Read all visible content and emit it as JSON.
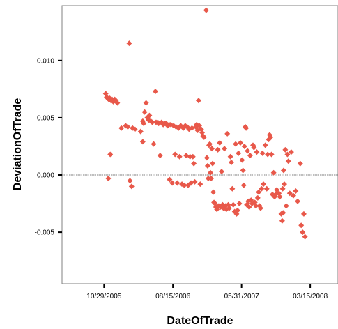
{
  "chart_data": {
    "type": "scatter",
    "title": "",
    "xlabel": "DateOfTrade",
    "ylabel": "DeviationOfTrade",
    "xlim": [
      "2005-05-05",
      "2008-07-10"
    ],
    "ylim": [
      -0.0095,
      0.0148
    ],
    "x_ticks": [
      {
        "date": "2005-10-29",
        "label": "10/29/2005"
      },
      {
        "date": "2006-08-15",
        "label": "08/15/2006"
      },
      {
        "date": "2007-05-31",
        "label": "05/31/2007"
      },
      {
        "date": "2008-03-15",
        "label": "03/15/2008"
      }
    ],
    "y_ticks": [
      {
        "value": 0.01,
        "label": "0.010"
      },
      {
        "value": 0.005,
        "label": "0.005"
      },
      {
        "value": 0.0,
        "label": "0.000"
      },
      {
        "value": -0.005,
        "label": "-0.005"
      }
    ],
    "reference_line": 0.0,
    "grid": false,
    "marker": "diamond",
    "marker_color": "#e8584a",
    "points": [
      [
        "2005-11-05",
        0.0071
      ],
      [
        "2005-11-09",
        0.0068
      ],
      [
        "2005-11-13",
        0.0067
      ],
      [
        "2005-11-18",
        0.0066
      ],
      [
        "2005-11-22",
        0.0067
      ],
      [
        "2005-11-27",
        0.0065
      ],
      [
        "2005-12-02",
        0.0066
      ],
      [
        "2005-12-07",
        0.0064
      ],
      [
        "2005-12-13",
        0.0066
      ],
      [
        "2005-12-18",
        0.0065
      ],
      [
        "2005-12-24",
        0.0063
      ],
      [
        "2005-11-16",
        -0.0003
      ],
      [
        "2005-11-24",
        0.0018
      ],
      [
        "2006-01-10",
        0.0041
      ],
      [
        "2006-01-28",
        0.0043
      ],
      [
        "2006-02-06",
        0.0042
      ],
      [
        "2006-02-12",
        0.0115
      ],
      [
        "2006-02-15",
        -0.0005
      ],
      [
        "2006-02-22",
        -0.001
      ],
      [
        "2006-02-26",
        0.0041
      ],
      [
        "2006-03-08",
        0.004
      ],
      [
        "2006-04-01",
        0.0038
      ],
      [
        "2006-04-10",
        0.0029
      ],
      [
        "2006-04-10",
        0.0047
      ],
      [
        "2006-04-14",
        0.0045
      ],
      [
        "2006-04-18",
        0.0055
      ],
      [
        "2006-04-24",
        0.0063
      ],
      [
        "2006-04-29",
        0.005
      ],
      [
        "2006-05-05",
        0.0048
      ],
      [
        "2006-05-08",
        0.0052
      ],
      [
        "2006-05-14",
        0.0047
      ],
      [
        "2006-05-20",
        0.0046
      ],
      [
        "2006-05-26",
        0.0027
      ],
      [
        "2006-06-02",
        0.0073
      ],
      [
        "2006-06-05",
        0.0046
      ],
      [
        "2006-06-12",
        0.0046
      ],
      [
        "2006-06-16",
        0.0045
      ],
      [
        "2006-06-22",
        0.0017
      ],
      [
        "2006-06-28",
        0.0046
      ],
      [
        "2006-07-05",
        0.0044
      ],
      [
        "2006-07-12",
        0.0045
      ],
      [
        "2006-07-18",
        0.0045
      ],
      [
        "2006-07-24",
        0.0043
      ],
      [
        "2006-07-30",
        0.0044
      ],
      [
        "2006-08-01",
        -0.0004
      ],
      [
        "2006-08-06",
        0.0044
      ],
      [
        "2006-08-12",
        -0.0007
      ],
      [
        "2006-08-18",
        0.0043
      ],
      [
        "2006-08-24",
        0.0018
      ],
      [
        "2006-08-28",
        0.0042
      ],
      [
        "2006-09-02",
        -0.0007
      ],
      [
        "2006-09-08",
        0.0041
      ],
      [
        "2006-09-12",
        0.0016
      ],
      [
        "2006-09-17",
        0.0043
      ],
      [
        "2006-09-22",
        -0.0008
      ],
      [
        "2006-09-28",
        0.0041
      ],
      [
        "2006-10-02",
        -0.0009
      ],
      [
        "2006-10-06",
        0.0043
      ],
      [
        "2006-10-10",
        0.0017
      ],
      [
        "2006-10-14",
        0.0042
      ],
      [
        "2006-10-18",
        -0.0009
      ],
      [
        "2006-10-22",
        0.004
      ],
      [
        "2006-10-26",
        0.0016
      ],
      [
        "2006-10-30",
        -0.0007
      ],
      [
        "2006-11-03",
        0.0041
      ],
      [
        "2006-11-07",
        0.0016
      ],
      [
        "2006-11-11",
        0.001
      ],
      [
        "2006-11-15",
        -0.0006
      ],
      [
        "2006-11-19",
        0.0042
      ],
      [
        "2006-11-23",
        0.0044
      ],
      [
        "2006-11-27",
        0.0039
      ],
      [
        "2006-12-01",
        0.0065
      ],
      [
        "2006-12-04",
        0.0043
      ],
      [
        "2006-12-08",
        -0.0008
      ],
      [
        "2006-12-12",
        0.004
      ],
      [
        "2006-12-16",
        0.0037
      ],
      [
        "2006-12-20",
        0.0034
      ],
      [
        "2006-12-24",
        0.0033
      ],
      [
        "2007-01-02",
        0.0144
      ],
      [
        "2007-01-05",
        0.0015
      ],
      [
        "2007-01-08",
        0.0008
      ],
      [
        "2007-01-11",
        -0.0003
      ],
      [
        "2007-01-14",
        0.0026
      ],
      [
        "2007-01-17",
        0.0027
      ],
      [
        "2007-01-20",
        0.0002
      ],
      [
        "2007-01-23",
        -0.0003
      ],
      [
        "2007-01-26",
        0.0023
      ],
      [
        "2007-01-29",
        0.001
      ],
      [
        "2007-02-01",
        -0.0015
      ],
      [
        "2007-02-04",
        -0.0024
      ],
      [
        "2007-02-08",
        -0.0025
      ],
      [
        "2007-02-12",
        -0.0028
      ],
      [
        "2007-02-16",
        -0.003
      ],
      [
        "2007-02-20",
        0.0022
      ],
      [
        "2007-02-24",
        -0.0027
      ],
      [
        "2007-02-28",
        0.0028
      ],
      [
        "2007-03-04",
        -0.0028
      ],
      [
        "2007-03-08",
        0.0003
      ],
      [
        "2007-03-12",
        -0.0026
      ],
      [
        "2007-03-16",
        -0.0029
      ],
      [
        "2007-03-20",
        0.0023
      ],
      [
        "2007-03-24",
        -0.0027
      ],
      [
        "2007-03-28",
        -0.003
      ],
      [
        "2007-04-01",
        0.0036
      ],
      [
        "2007-04-05",
        -0.0026
      ],
      [
        "2007-04-09",
        -0.0029
      ],
      [
        "2007-04-14",
        0.0016
      ],
      [
        "2007-04-18",
        0.0011
      ],
      [
        "2007-04-22",
        -0.0012
      ],
      [
        "2007-04-26",
        -0.0026
      ],
      [
        "2007-05-02",
        -0.0032
      ],
      [
        "2007-05-06",
        0.0027
      ],
      [
        "2007-05-10",
        -0.0034
      ],
      [
        "2007-05-14",
        -0.0031
      ],
      [
        "2007-05-18",
        0.0019
      ],
      [
        "2007-05-22",
        -0.0025
      ],
      [
        "2007-05-26",
        0.0028
      ],
      [
        "2007-06-02",
        0.0013
      ],
      [
        "2007-06-06",
        0.0004
      ],
      [
        "2007-06-09",
        -0.0009
      ],
      [
        "2007-06-12",
        0.0025
      ],
      [
        "2007-06-16",
        0.0042
      ],
      [
        "2007-06-19",
        0.0041
      ],
      [
        "2007-06-22",
        -0.0026
      ],
      [
        "2007-06-25",
        0.0021
      ],
      [
        "2007-06-28",
        -0.0023
      ],
      [
        "2007-07-02",
        -0.0028
      ],
      [
        "2007-07-06",
        0.0017
      ],
      [
        "2007-07-10",
        -0.0022
      ],
      [
        "2007-07-14",
        -0.0025
      ],
      [
        "2007-07-18",
        0.0026
      ],
      [
        "2007-07-22",
        0.0024
      ],
      [
        "2007-07-26",
        -0.0024
      ],
      [
        "2007-07-30",
        -0.0027
      ],
      [
        "2007-08-03",
        0.002
      ],
      [
        "2007-08-07",
        -0.002
      ],
      [
        "2007-08-11",
        -0.0015
      ],
      [
        "2007-08-15",
        -0.0027
      ],
      [
        "2007-08-19",
        -0.0029
      ],
      [
        "2007-08-23",
        -0.0012
      ],
      [
        "2007-08-27",
        0.0019
      ],
      [
        "2007-08-31",
        -0.0008
      ],
      [
        "2007-09-08",
        0.0026
      ],
      [
        "2007-09-14",
        -0.0012
      ],
      [
        "2007-09-18",
        0.0018
      ],
      [
        "2007-09-22",
        0.0031
      ],
      [
        "2007-09-26",
        0.0035
      ],
      [
        "2007-09-30",
        0.0033
      ],
      [
        "2007-10-04",
        0.0018
      ],
      [
        "2007-10-08",
        -0.0017
      ],
      [
        "2007-10-13",
        0.0002
      ],
      [
        "2007-10-17",
        -0.0019
      ],
      [
        "2007-10-22",
        -0.0017
      ],
      [
        "2007-10-26",
        -0.0013
      ],
      [
        "2007-11-04",
        -0.0016
      ],
      [
        "2007-11-08",
        -0.0019
      ],
      [
        "2007-11-14",
        -0.0034
      ],
      [
        "2007-11-18",
        -0.004
      ],
      [
        "2007-11-20",
        -0.0012
      ],
      [
        "2007-11-22",
        -0.0033
      ],
      [
        "2007-11-24",
        0.0004
      ],
      [
        "2007-11-27",
        -0.0008
      ],
      [
        "2007-12-01",
        0.0022
      ],
      [
        "2007-12-05",
        -0.0027
      ],
      [
        "2007-12-10",
        0.0018
      ],
      [
        "2007-12-14",
        0.0012
      ],
      [
        "2007-12-20",
        -0.0016
      ],
      [
        "2007-12-26",
        0.002
      ],
      [
        "2008-01-04",
        -0.0018
      ],
      [
        "2008-01-14",
        -0.0014
      ],
      [
        "2008-01-22",
        -0.0023
      ],
      [
        "2008-02-02",
        0.001
      ],
      [
        "2008-02-06",
        -0.0044
      ],
      [
        "2008-02-12",
        -0.005
      ],
      [
        "2008-02-17",
        -0.0034
      ],
      [
        "2008-02-22",
        -0.0054
      ]
    ]
  }
}
